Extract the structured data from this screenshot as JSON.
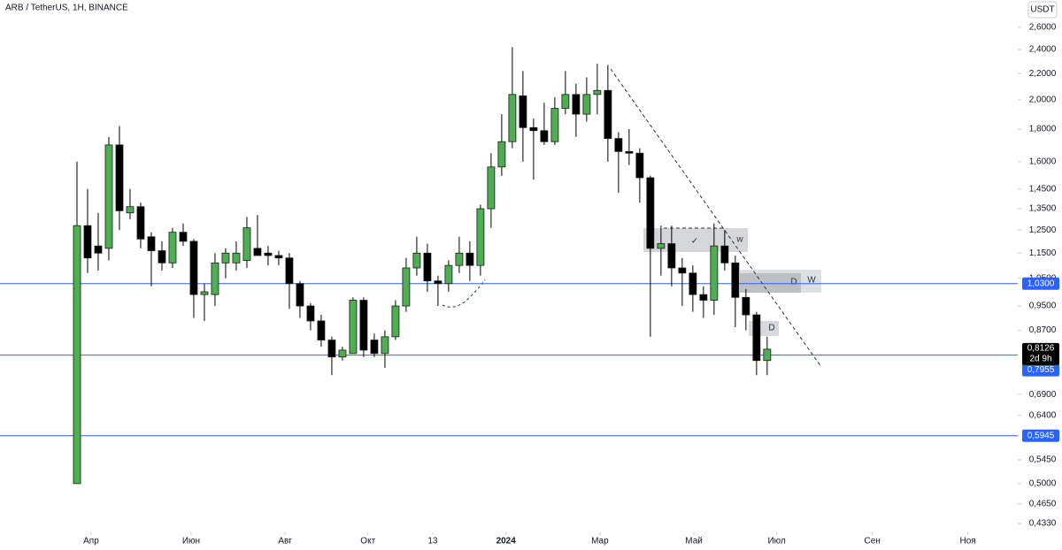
{
  "chart_data": {
    "type": "candlestick",
    "title": "ARB / TetherUS, 1H, BINANCE",
    "currency": "USDT",
    "log_scale": true,
    "up_color": "#4caf50",
    "down_color": "#000000",
    "wick_color": "#000000",
    "level_color": "#2962ff",
    "xlim": [
      -7.25,
      88.6
    ],
    "ylim": [
      0.422,
      2.87
    ],
    "xticks": [
      {
        "value": 1.33,
        "label": "Апр"
      },
      {
        "value": 10.75,
        "label": "Июн"
      },
      {
        "value": 19.6,
        "label": "Авг"
      },
      {
        "value": 27.4,
        "label": "Окт"
      },
      {
        "value": 33.5,
        "label": "13"
      },
      {
        "value": 40.4,
        "label": "2024"
      },
      {
        "value": 49.25,
        "label": "Мар"
      },
      {
        "value": 58.1,
        "label": "Май"
      },
      {
        "value": 65.9,
        "label": "Июл"
      },
      {
        "value": 74.9,
        "label": "Сен"
      },
      {
        "value": 83.9,
        "label": "Ноя"
      }
    ],
    "yticks": [
      {
        "value": 2.6,
        "label": "2,6000"
      },
      {
        "value": 2.4,
        "label": "2,4000"
      },
      {
        "value": 2.2,
        "label": "2,2000"
      },
      {
        "value": 2.0,
        "label": "2,0000"
      },
      {
        "value": 1.8,
        "label": "1,8000"
      },
      {
        "value": 1.6,
        "label": "1,6000"
      },
      {
        "value": 1.45,
        "label": "1,4500"
      },
      {
        "value": 1.35,
        "label": "1,3500"
      },
      {
        "value": 1.25,
        "label": "1,2500"
      },
      {
        "value": 1.15,
        "label": "1,1500"
      },
      {
        "value": 1.05,
        "label": "1,0500"
      },
      {
        "value": 0.95,
        "label": "0,9500"
      },
      {
        "value": 0.87,
        "label": "0,8700"
      },
      {
        "value": 0.69,
        "label": "0,6900"
      },
      {
        "value": 0.64,
        "label": "0,6400"
      },
      {
        "value": 0.545,
        "label": "0,5450"
      },
      {
        "value": 0.5,
        "label": "0,5000"
      },
      {
        "value": 0.465,
        "label": "0,4650"
      },
      {
        "value": 0.433,
        "label": "0,4330"
      }
    ],
    "open": [
      0.5,
      1.27,
      1.18,
      1.17,
      1.7,
      1.33,
      1.36,
      1.22,
      1.16,
      1.11,
      1.24,
      1.2,
      0.99,
      0.99,
      1.11,
      1.11,
      1.12,
      1.17,
      1.15,
      1.14,
      1.13,
      1.03,
      0.95,
      0.9,
      0.84,
      0.79,
      0.8,
      0.97,
      0.84,
      0.8,
      0.85,
      0.95,
      1.09,
      1.15,
      1.04,
      1.03,
      1.1,
      1.15,
      1.1,
      1.35,
      1.57,
      1.72,
      2.03,
      1.81,
      1.79,
      1.72,
      1.94,
      2.04,
      1.9,
      2.04,
      2.07,
      1.74,
      1.66,
      1.65,
      1.51,
      1.17,
      1.19,
      1.09,
      1.07,
      0.99,
      0.97,
      1.18,
      1.11,
      0.98,
      0.92,
      0.78
    ],
    "high": [
      1.6,
      1.45,
      1.33,
      1.75,
      1.82,
      1.45,
      1.38,
      1.24,
      1.2,
      1.26,
      1.28,
      1.21,
      1.03,
      1.15,
      1.17,
      1.2,
      1.31,
      1.32,
      1.18,
      1.16,
      1.15,
      1.04,
      0.96,
      0.92,
      0.85,
      0.82,
      0.98,
      0.98,
      0.86,
      0.87,
      0.97,
      1.13,
      1.22,
      1.19,
      1.06,
      1.12,
      1.22,
      1.2,
      1.37,
      1.65,
      1.9,
      2.42,
      2.22,
      1.87,
      1.98,
      2.02,
      2.22,
      2.12,
      2.17,
      2.28,
      2.27,
      1.78,
      1.8,
      1.68,
      1.52,
      1.27,
      1.27,
      1.13,
      1.1,
      1.02,
      1.28,
      1.25,
      1.14,
      1.01,
      0.93,
      0.85
    ],
    "low": [
      0.5,
      1.07,
      1.08,
      1.12,
      1.25,
      1.3,
      1.17,
      1.02,
      1.08,
      1.09,
      1.18,
      0.91,
      0.9,
      0.95,
      1.05,
      1.08,
      1.09,
      1.14,
      1.1,
      1.1,
      0.94,
      0.91,
      0.87,
      0.82,
      0.74,
      0.78,
      0.8,
      0.79,
      0.79,
      0.76,
      0.84,
      0.93,
      1.06,
      1.0,
      0.95,
      1.0,
      1.07,
      1.04,
      1.06,
      1.26,
      1.52,
      1.68,
      1.6,
      1.5,
      1.7,
      1.7,
      1.9,
      1.75,
      1.85,
      1.9,
      1.6,
      1.43,
      1.58,
      1.38,
      0.85,
      1.06,
      1.02,
      0.95,
      0.93,
      0.91,
      0.92,
      1.08,
      0.88,
      0.87,
      0.74,
      0.74
    ],
    "close": [
      1.27,
      1.13,
      1.15,
      1.7,
      1.34,
      1.36,
      1.21,
      1.16,
      1.11,
      1.24,
      1.2,
      0.99,
      1.0,
      1.11,
      1.15,
      1.15,
      1.26,
      1.14,
      1.14,
      1.13,
      1.03,
      0.95,
      0.9,
      0.84,
      0.79,
      0.81,
      0.97,
      0.81,
      0.8,
      0.85,
      0.95,
      1.09,
      1.15,
      1.04,
      1.03,
      1.1,
      1.15,
      1.1,
      1.35,
      1.57,
      1.72,
      2.04,
      1.81,
      1.79,
      1.72,
      1.94,
      2.04,
      1.9,
      2.04,
      2.07,
      1.74,
      1.66,
      1.65,
      1.51,
      1.17,
      1.19,
      1.09,
      1.07,
      0.99,
      0.97,
      1.18,
      1.11,
      0.98,
      0.92,
      0.78,
      0.8126
    ],
    "levels": [
      {
        "value": 1.03,
        "label": "1,0300"
      },
      {
        "value": 0.7955,
        "label": "0,7955"
      },
      {
        "value": 0.5945,
        "label": "0,5945"
      }
    ],
    "last_price": {
      "value": 0.8126,
      "label": "0,8126"
    },
    "countdown": "2d 9h",
    "annotations": [
      "✓",
      "w",
      "D",
      "W",
      "D"
    ]
  }
}
